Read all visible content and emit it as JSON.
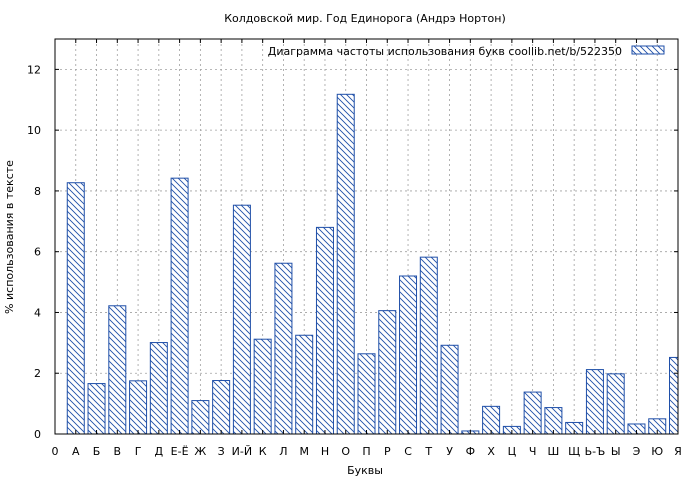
{
  "chart_data": {
    "type": "bar",
    "title": "Колдовской мир. Год Единорога (Андрэ Нортон)",
    "xlabel": "Буквы",
    "ylabel": "% использования в тексте",
    "legend": {
      "label": "Диаграмма частоты использования букв  coollib.net/b/522350",
      "placement": "top-right"
    },
    "x_ticks": [
      "0",
      "А",
      "Б",
      "В",
      "Г",
      "Д",
      "Е-Ё",
      "Ж",
      "З",
      "И-Й",
      "К",
      "Л",
      "М",
      "Н",
      "О",
      "П",
      "Р",
      "С",
      "Т",
      "У",
      "Ф",
      "Х",
      "Ц",
      "Ч",
      "Ш",
      "Щ",
      "Ь-Ъ",
      "Ы",
      "Э",
      "Ю",
      "Я"
    ],
    "categories": [
      "А",
      "Б",
      "В",
      "Г",
      "Д",
      "Е-Ё",
      "Ж",
      "З",
      "И-Й",
      "К",
      "Л",
      "М",
      "Н",
      "О",
      "П",
      "Р",
      "С",
      "Т",
      "У",
      "Ф",
      "Х",
      "Ц",
      "Ч",
      "Ш",
      "Щ",
      "Ь-Ъ",
      "Ы",
      "Э",
      "Ю",
      "Я"
    ],
    "values": [
      8.27,
      1.66,
      4.22,
      1.75,
      3.01,
      8.42,
      1.1,
      1.76,
      7.53,
      3.12,
      5.62,
      3.25,
      6.8,
      11.18,
      2.64,
      4.06,
      5.2,
      5.82,
      2.92,
      0.1,
      0.91,
      0.25,
      1.38,
      0.87,
      0.38,
      2.12,
      1.98,
      0.33,
      0.5,
      2.52
    ],
    "ylim": [
      0,
      13
    ],
    "yticks": [
      0,
      2,
      4,
      6,
      8,
      10,
      12
    ],
    "grid": true,
    "colors": {
      "bar_stroke": "#1f4fa8",
      "grid": "#a0a0a0",
      "axis": "#000000"
    }
  }
}
